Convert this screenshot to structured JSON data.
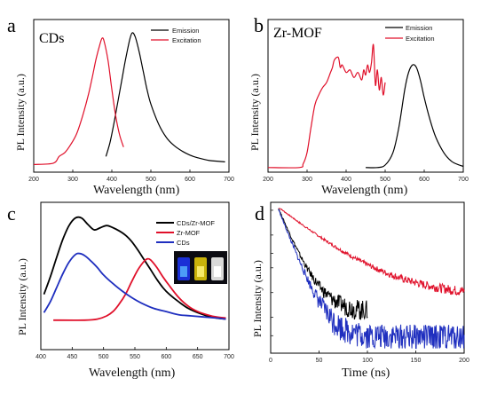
{
  "chart_data": [
    {
      "panel": "a",
      "type": "line",
      "title": "CDs",
      "xlabel": "Wavelength (nm)",
      "ylabel": "PL Intensity (a.u.)",
      "xlim": [
        200,
        700
      ],
      "xticks": [
        "200",
        "300",
        "400",
        "500",
        "600",
        "700"
      ],
      "legend_position": "top-right",
      "series": [
        {
          "name": "Emission",
          "color": "#000000",
          "x": [
            385,
            395,
            405,
            415,
            425,
            435,
            445,
            452,
            460,
            470,
            480,
            490,
            500,
            520,
            540,
            560,
            580,
            600,
            620,
            650,
            690
          ],
          "y": [
            0.06,
            0.16,
            0.3,
            0.46,
            0.62,
            0.78,
            0.92,
            0.98,
            0.95,
            0.84,
            0.7,
            0.56,
            0.45,
            0.3,
            0.2,
            0.14,
            0.1,
            0.07,
            0.05,
            0.03,
            0.02
          ]
        },
        {
          "name": "Excitation",
          "color": "#e0102a",
          "x": [
            200,
            250,
            265,
            280,
            295,
            310,
            325,
            340,
            350,
            360,
            370,
            375,
            380,
            390,
            400,
            410,
            420,
            430
          ],
          "y": [
            0.0,
            0.01,
            0.06,
            0.09,
            0.15,
            0.23,
            0.36,
            0.52,
            0.65,
            0.79,
            0.9,
            0.94,
            0.92,
            0.78,
            0.56,
            0.36,
            0.22,
            0.13
          ]
        }
      ]
    },
    {
      "panel": "b",
      "type": "line",
      "title": "Zr-MOF",
      "xlabel": "Wavelength (nm)",
      "ylabel": "PL Intensity (a.u.)",
      "xlim": [
        200,
        700
      ],
      "xticks": [
        "200",
        "300",
        "400",
        "500",
        "600",
        "700"
      ],
      "legend_position": "top-right",
      "series": [
        {
          "name": "Emission",
          "color": "#000000",
          "x": [
            450,
            480,
            500,
            520,
            535,
            550,
            560,
            570,
            580,
            590,
            600,
            615,
            630,
            650,
            670,
            690,
            700
          ],
          "y": [
            0.0,
            0.0,
            0.02,
            0.12,
            0.32,
            0.62,
            0.76,
            0.82,
            0.8,
            0.7,
            0.56,
            0.38,
            0.24,
            0.12,
            0.05,
            0.02,
            0.01
          ]
        },
        {
          "name": "Excitation",
          "color": "#e0102a",
          "x": [
            200,
            280,
            290,
            300,
            310,
            320,
            330,
            340,
            350,
            360,
            365,
            370,
            380,
            385,
            390,
            400,
            410,
            420,
            430,
            440,
            445,
            450,
            455,
            460,
            465,
            470,
            475,
            480,
            485,
            490,
            495,
            500
          ],
          "y": [
            0.0,
            0.0,
            0.03,
            0.12,
            0.32,
            0.5,
            0.58,
            0.64,
            0.68,
            0.76,
            0.8,
            0.86,
            0.88,
            0.8,
            0.82,
            0.76,
            0.78,
            0.72,
            0.76,
            0.7,
            0.78,
            0.74,
            0.82,
            0.76,
            0.84,
            0.98,
            0.66,
            0.78,
            0.62,
            0.72,
            0.58,
            0.68
          ]
        }
      ]
    },
    {
      "panel": "c",
      "type": "line",
      "xlabel": "Wavelength (nm)",
      "ylabel": "PL Intensity (a.u.)",
      "xlim": [
        400,
        700
      ],
      "xticks": [
        "400",
        "450",
        "500",
        "550",
        "600",
        "650",
        "700"
      ],
      "legend_position": "top-right",
      "inset": "photo of three vials (blue, yellow, white emission)",
      "series": [
        {
          "name": "CDs/Zr-MOF",
          "color": "#000000",
          "x": [
            405,
            415,
            425,
            435,
            445,
            455,
            465,
            475,
            485,
            495,
            505,
            515,
            525,
            535,
            545,
            555,
            565,
            575,
            585,
            595,
            605,
            620,
            635,
            650,
            665,
            680,
            695
          ],
          "y": [
            0.24,
            0.4,
            0.58,
            0.75,
            0.88,
            0.95,
            0.95,
            0.89,
            0.84,
            0.86,
            0.88,
            0.86,
            0.83,
            0.79,
            0.73,
            0.65,
            0.56,
            0.47,
            0.38,
            0.3,
            0.24,
            0.17,
            0.11,
            0.07,
            0.04,
            0.02,
            0.01
          ]
        },
        {
          "name": "Zr-MOF",
          "color": "#e0102a",
          "x": [
            420,
            470,
            490,
            505,
            515,
            525,
            535,
            545,
            555,
            565,
            570,
            575,
            585,
            595,
            605,
            620,
            635,
            650,
            665,
            680,
            695
          ],
          "y": [
            0.0,
            0.0,
            0.01,
            0.04,
            0.08,
            0.15,
            0.24,
            0.36,
            0.47,
            0.55,
            0.57,
            0.56,
            0.49,
            0.4,
            0.32,
            0.21,
            0.13,
            0.08,
            0.05,
            0.03,
            0.02
          ]
        },
        {
          "name": "CDs",
          "color": "#1f2fbf",
          "x": [
            405,
            415,
            425,
            435,
            445,
            455,
            462,
            470,
            480,
            490,
            500,
            515,
            530,
            545,
            560,
            580,
            600,
            620,
            640,
            660,
            680,
            695
          ],
          "y": [
            0.07,
            0.17,
            0.3,
            0.43,
            0.54,
            0.61,
            0.62,
            0.6,
            0.55,
            0.49,
            0.42,
            0.34,
            0.27,
            0.21,
            0.16,
            0.11,
            0.08,
            0.05,
            0.04,
            0.03,
            0.02,
            0.01
          ]
        }
      ]
    },
    {
      "panel": "d",
      "type": "line",
      "xlabel": "Time (ns)",
      "ylabel": "PL Intensity (a.u.)",
      "xlim": [
        0,
        200
      ],
      "xticks": [
        "0",
        "50",
        "100",
        "150",
        "200"
      ],
      "yscale": "log",
      "series": [
        {
          "color": "#e0102a",
          "tau": 45,
          "floor": 0.09,
          "xmax": 200,
          "noise": 0.025
        },
        {
          "color": "#000000",
          "tau": 15,
          "floor": 0.06,
          "xmax": 100,
          "noise": 0.03
        },
        {
          "color": "#1f2fbf",
          "tau": 14,
          "floor": 0.03,
          "xmax": 200,
          "noise": 0.03
        }
      ]
    }
  ]
}
